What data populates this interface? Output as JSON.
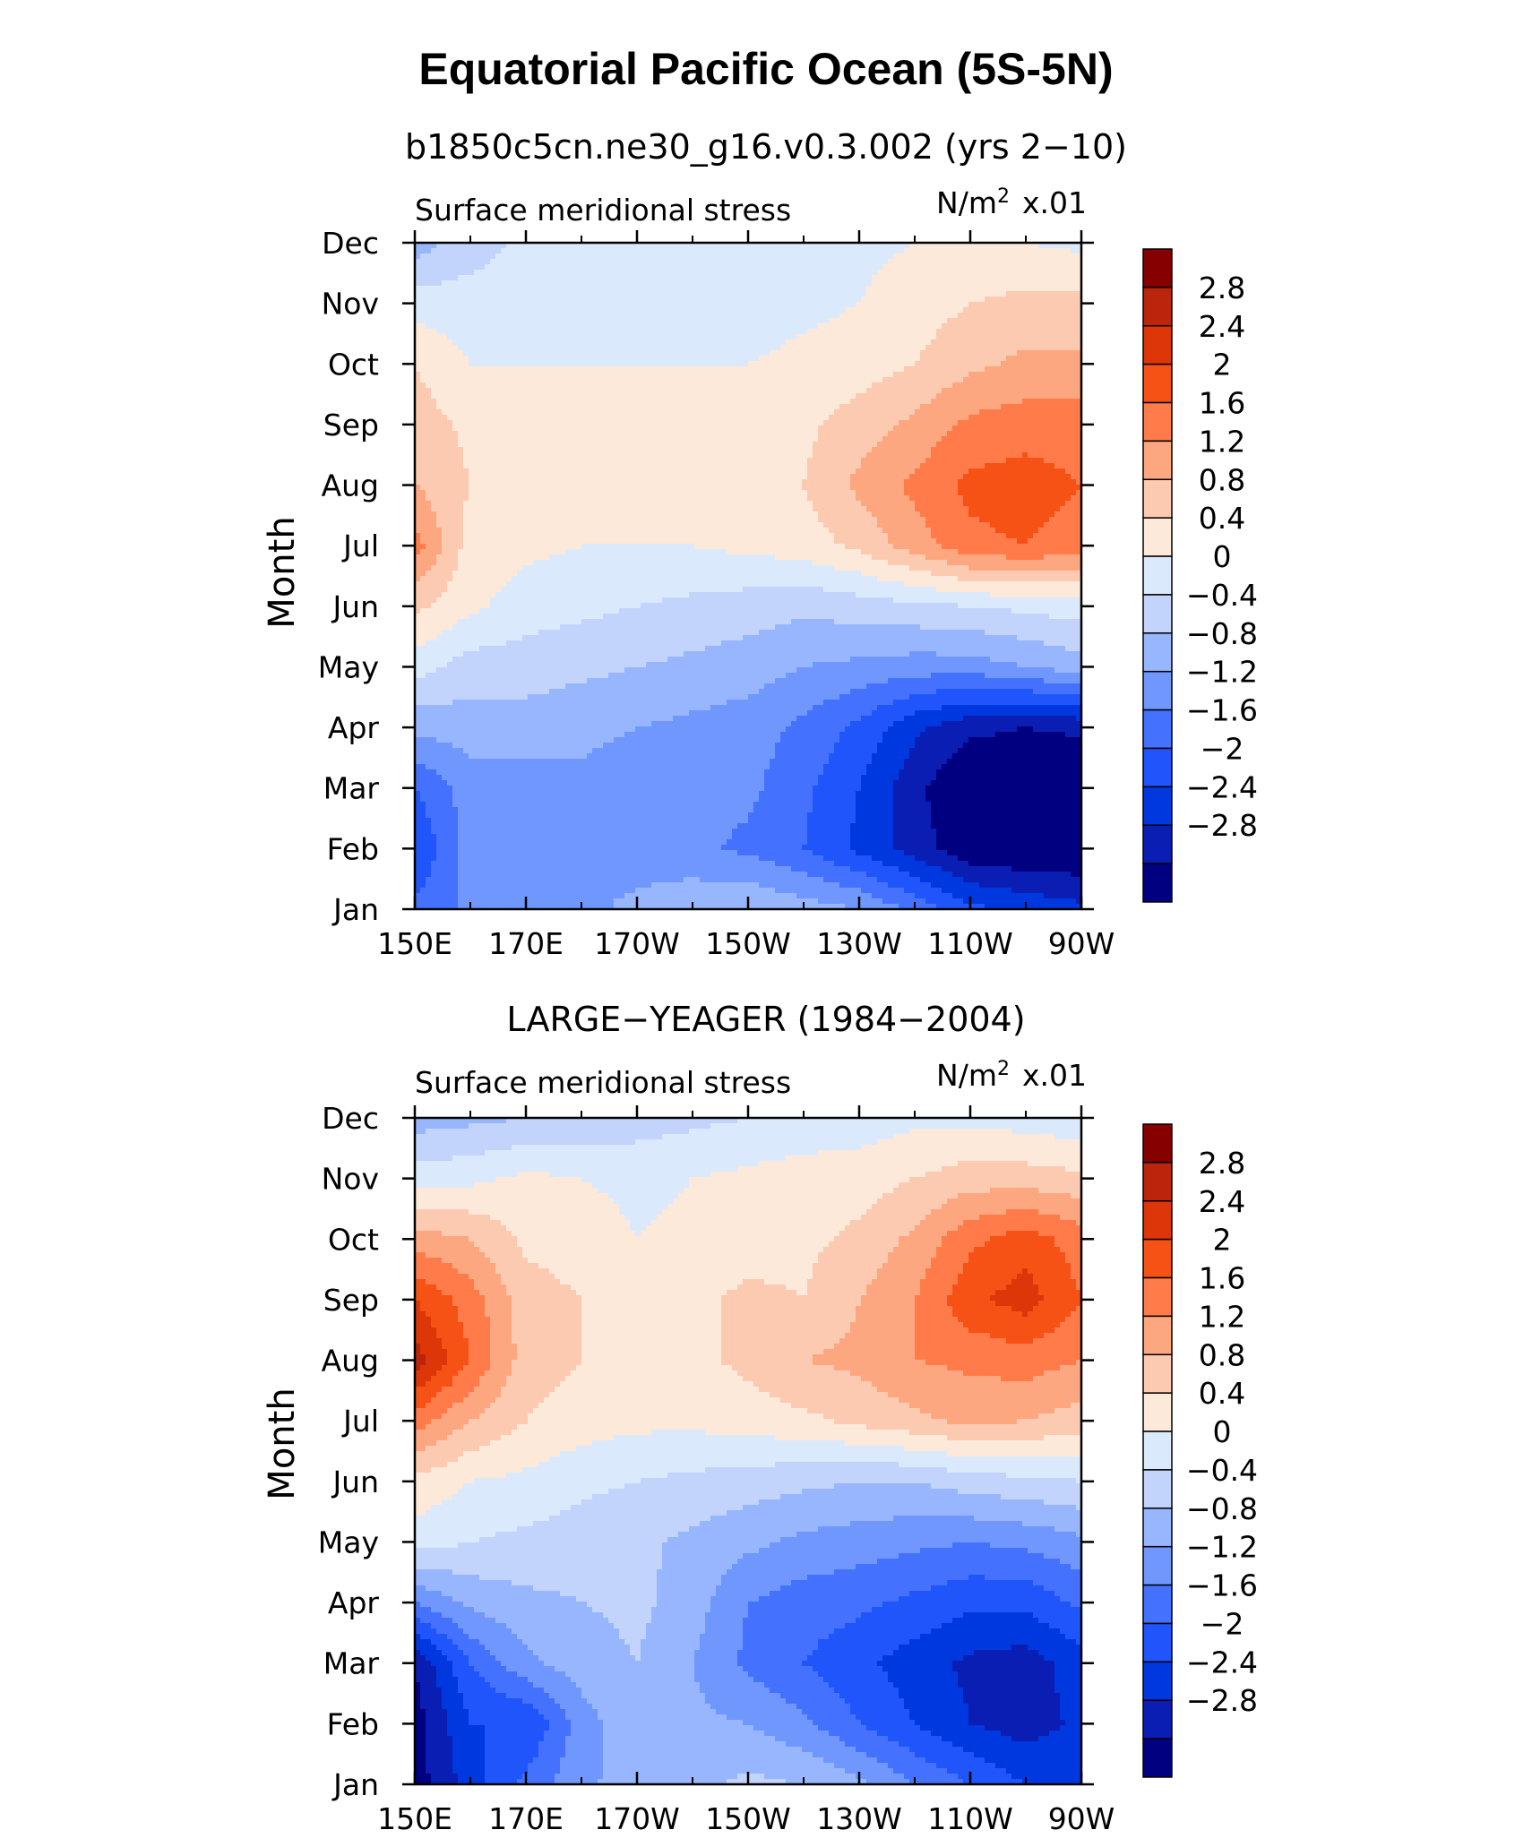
{
  "figure": {
    "title": "Equatorial Pacific Ocean (5S-5N)"
  },
  "chart_data": [
    {
      "type": "heatmap",
      "subtitle": "b1850c5cn.ne30_g16.v0.3.002 (yrs 2−10)",
      "variable": "Surface meridional stress",
      "units_base": "N/m",
      "units_exp": "2",
      "units_scale": "x.01",
      "xlabel": "",
      "ylabel": "Month",
      "x_ticks": [
        "150E",
        "170E",
        "170W",
        "150W",
        "130W",
        "110W",
        "90W"
      ],
      "y_ticks": [
        "Jan",
        "Feb",
        "Mar",
        "Apr",
        "May",
        "Jun",
        "Jul",
        "Aug",
        "Sep",
        "Oct",
        "Nov",
        "Dec"
      ],
      "longitudes": [
        150,
        160,
        170,
        180,
        190,
        200,
        210,
        220,
        230,
        240,
        250,
        260,
        270
      ],
      "months": [
        "Jan",
        "Feb",
        "Mar",
        "Apr",
        "May",
        "Jun",
        "Jul",
        "Aug",
        "Sep",
        "Oct",
        "Nov",
        "Dec"
      ],
      "values": [
        [
          -1.5,
          -1.1,
          -1.0,
          -0.9,
          -0.7,
          -0.5,
          -0.4,
          -0.6,
          -0.8,
          -1.3,
          -1.9,
          -2.1,
          -2.3
        ],
        [
          -2.0,
          -1.0,
          -1.0,
          -0.9,
          -1.0,
          -1.1,
          -1.3,
          -1.6,
          -2.1,
          -2.6,
          -3.1,
          -3.2,
          -3.2
        ],
        [
          -1.6,
          -1.0,
          -1.0,
          -0.9,
          -1.0,
          -1.0,
          -1.1,
          -1.5,
          -2.0,
          -2.7,
          -3.2,
          -3.3,
          -3.3
        ],
        [
          -0.7,
          -0.6,
          -0.6,
          -0.7,
          -0.8,
          -0.9,
          -1.0,
          -1.3,
          -1.7,
          -2.3,
          -2.7,
          -2.8,
          -2.7
        ],
        [
          0.2,
          -0.2,
          -0.2,
          -0.3,
          -0.4,
          -0.5,
          -0.6,
          -0.8,
          -0.9,
          -1.0,
          -1.0,
          -0.8,
          -0.6
        ],
        [
          0.9,
          0.5,
          0.2,
          0.1,
          0.0,
          -0.1,
          -0.2,
          -0.3,
          -0.2,
          -0.1,
          0.0,
          0.1,
          0.2
        ],
        [
          1.8,
          0.6,
          0.5,
          0.4,
          0.4,
          0.4,
          0.5,
          0.6,
          0.9,
          1.4,
          1.9,
          2.0,
          1.8
        ],
        [
          1.2,
          0.8,
          0.6,
          0.5,
          0.5,
          0.5,
          0.6,
          0.8,
          1.3,
          1.7,
          2.1,
          2.2,
          2.0
        ],
        [
          1.0,
          0.7,
          0.5,
          0.5,
          0.5,
          0.5,
          0.6,
          0.7,
          1.0,
          1.3,
          1.7,
          1.8,
          1.8
        ],
        [
          0.8,
          0.4,
          0.4,
          0.4,
          0.4,
          0.4,
          0.4,
          0.5,
          0.6,
          0.8,
          1.1,
          1.3,
          1.3
        ],
        [
          0.2,
          0.2,
          0.2,
          0.3,
          0.3,
          0.2,
          0.2,
          0.3,
          0.4,
          0.6,
          0.8,
          0.9,
          0.9
        ],
        [
          -0.6,
          -0.2,
          0.1,
          0.1,
          0.2,
          0.2,
          0.2,
          0.2,
          0.3,
          0.4,
          0.5,
          0.4,
          0.3
        ]
      ],
      "levels": [
        -3.2,
        -2.8,
        -2.4,
        -2.0,
        -1.6,
        -1.2,
        -0.8,
        -0.4,
        0.0,
        0.4,
        0.8,
        1.2,
        1.6,
        2.0,
        2.4,
        2.8,
        3.2
      ],
      "colorbar_labels": [
        "2.8",
        "2.4",
        "2",
        "1.6",
        "1.2",
        "0.8",
        "0.4",
        "0",
        "−0.4",
        "−0.8",
        "−1.2",
        "−1.6",
        "−2",
        "−2.4",
        "−2.8"
      ]
    },
    {
      "type": "heatmap",
      "subtitle": "LARGE−YEAGER (1984−2004)",
      "variable": "Surface meridional stress",
      "units_base": "N/m",
      "units_exp": "2",
      "units_scale": "x.01",
      "xlabel": "",
      "ylabel": "Month",
      "x_ticks": [
        "150E",
        "170E",
        "170W",
        "150W",
        "130W",
        "110W",
        "90W"
      ],
      "y_ticks": [
        "Jan",
        "Feb",
        "Mar",
        "Apr",
        "May",
        "Jun",
        "Jul",
        "Aug",
        "Sep",
        "Oct",
        "Nov",
        "Dec"
      ],
      "longitudes": [
        150,
        160,
        170,
        180,
        190,
        200,
        210,
        220,
        230,
        240,
        250,
        260,
        270
      ],
      "months": [
        "Jan",
        "Feb",
        "Mar",
        "Apr",
        "May",
        "Jun",
        "Jul",
        "Aug",
        "Sep",
        "Oct",
        "Nov",
        "Dec"
      ],
      "values": [
        [
          -3.0,
          -2.2,
          -1.5,
          -0.9,
          -0.6,
          -0.5,
          -0.3,
          -0.4,
          -0.7,
          -1.2,
          -1.6,
          -2.0,
          -2.0
        ],
        [
          -3.0,
          -2.0,
          -2.0,
          -1.0,
          -0.5,
          -0.7,
          -0.8,
          -1.1,
          -1.6,
          -2.0,
          -2.4,
          -2.6,
          -2.3
        ],
        [
          -2.8,
          -1.6,
          -0.9,
          -0.6,
          -0.4,
          -0.8,
          -1.3,
          -1.6,
          -1.9,
          -2.2,
          -2.5,
          -2.6,
          -2.2
        ],
        [
          -1.2,
          -0.7,
          -0.5,
          -0.4,
          -0.3,
          -0.6,
          -1.2,
          -1.4,
          -1.5,
          -1.7,
          -1.9,
          -1.9,
          -1.5
        ],
        [
          0.2,
          0.0,
          -0.1,
          -0.2,
          -0.3,
          -0.5,
          -0.7,
          -0.9,
          -1.0,
          -1.1,
          -1.2,
          -1.1,
          -0.9
        ],
        [
          0.7,
          0.4,
          0.3,
          0.1,
          0.0,
          -0.1,
          -0.2,
          -0.3,
          -0.4,
          -0.4,
          -0.2,
          -0.1,
          0.0
        ],
        [
          1.8,
          1.2,
          0.8,
          0.6,
          0.5,
          0.5,
          0.6,
          0.7,
          0.9,
          1.1,
          1.3,
          1.2,
          1.0
        ],
        [
          3.0,
          2.0,
          1.0,
          0.8,
          0.6,
          0.7,
          0.9,
          1.2,
          1.3,
          1.6,
          1.7,
          1.8,
          1.6
        ],
        [
          2.4,
          1.8,
          1.0,
          0.8,
          0.6,
          0.7,
          0.9,
          0.8,
          1.2,
          1.6,
          2.3,
          2.6,
          2.0
        ],
        [
          1.4,
          1.2,
          0.7,
          0.6,
          0.4,
          0.5,
          0.6,
          0.7,
          0.9,
          1.3,
          1.9,
          2.2,
          1.8
        ],
        [
          0.2,
          0.3,
          0.5,
          0.4,
          0.3,
          0.4,
          0.5,
          0.6,
          0.6,
          0.8,
          1.0,
          1.0,
          0.9
        ],
        [
          -0.6,
          -0.5,
          -0.4,
          -0.3,
          -0.2,
          -0.1,
          0.0,
          0.1,
          0.2,
          0.3,
          0.3,
          0.2,
          0.1
        ]
      ],
      "levels": [
        -3.2,
        -2.8,
        -2.4,
        -2.0,
        -1.6,
        -1.2,
        -0.8,
        -0.4,
        0.0,
        0.4,
        0.8,
        1.2,
        1.6,
        2.0,
        2.4,
        2.8,
        3.2
      ],
      "colorbar_labels": [
        "2.8",
        "2.4",
        "2",
        "1.6",
        "1.2",
        "0.8",
        "0.4",
        "0",
        "−0.4",
        "−0.8",
        "−1.2",
        "−1.6",
        "−2",
        "−2.4",
        "−2.8"
      ]
    }
  ],
  "colors": {
    "palette": [
      "#000080",
      "#0a1eb4",
      "#0038e0",
      "#1f55fa",
      "#4472ff",
      "#6f97fe",
      "#98b6fd",
      "#c2d3fc",
      "#dbe9fc",
      "#fde9d9",
      "#fccab0",
      "#fda781",
      "#ff7c4a",
      "#f75216",
      "#dd3608",
      "#ba250b",
      "#870000"
    ],
    "frame": "#000000",
    "background": "#ffffff"
  }
}
